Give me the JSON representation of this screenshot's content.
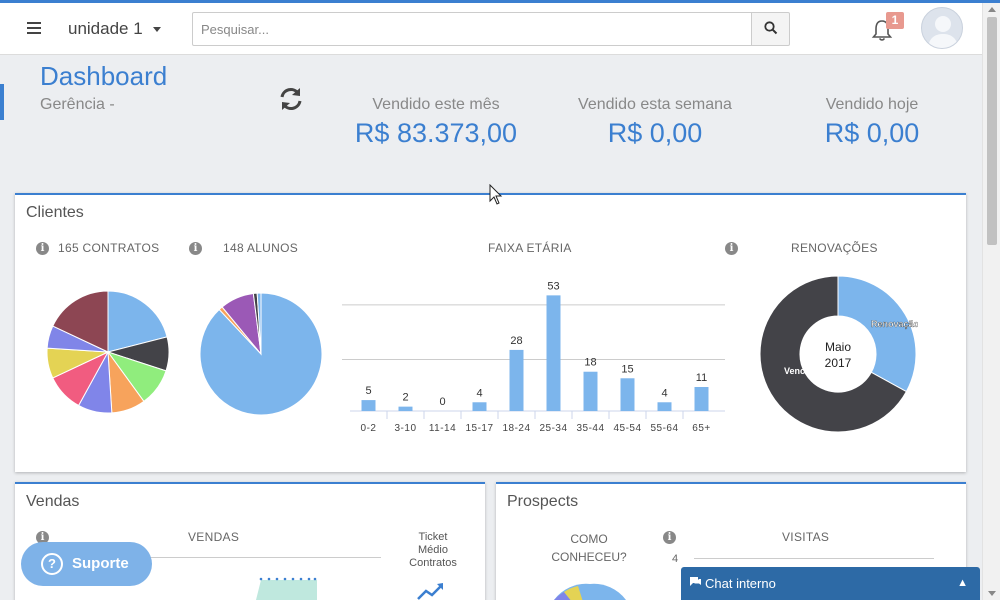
{
  "header": {
    "unit_label": "unidade 1",
    "search_placeholder": "Pesquisar...",
    "notification_count": "1"
  },
  "page": {
    "title": "Dashboard",
    "subtitle": "Gerência -"
  },
  "stats": [
    {
      "label": "Vendido este mês",
      "value": "R$ 83.373,00"
    },
    {
      "label": "Vendido esta semana",
      "value": "R$ 0,00"
    },
    {
      "label": "Vendido hoje",
      "value": "R$ 0,00"
    }
  ],
  "clientes": {
    "title": "Clientes",
    "contratos_label": "165 CONTRATOS",
    "alunos_label": "148 ALUNOS",
    "faixa_label": "FAIXA ETÁRIA",
    "renovacoes_label": "RENOVAÇÕES"
  },
  "vendas": {
    "title": "Vendas",
    "vendas_label": "VENDAS",
    "ticket_line1": "Ticket",
    "ticket_line2": "Médio",
    "ticket_line3": "Contratos"
  },
  "prospects": {
    "title": "Prospects",
    "como_line1": "COMO",
    "como_line2": "CONHECEU?",
    "visitas_label": "VISITAS",
    "visitas_axis": "4"
  },
  "support": {
    "label": "Suporte"
  },
  "chat": {
    "label": "Chat interno"
  },
  "chart_data": [
    {
      "type": "pie",
      "name_ref": "contratos",
      "series": [
        {
          "value": 21,
          "color": "#7cb5ec"
        },
        {
          "value": 9,
          "color": "#434348"
        },
        {
          "value": 10,
          "color": "#90ed7d"
        },
        {
          "value": 9,
          "color": "#f7a35c"
        },
        {
          "value": 9,
          "color": "#8085e9"
        },
        {
          "value": 10,
          "color": "#f15c80"
        },
        {
          "value": 8,
          "color": "#e4d354"
        },
        {
          "value": 6,
          "color": "#8085e8"
        },
        {
          "value": 18,
          "color": "#8d4653"
        }
      ]
    },
    {
      "type": "pie",
      "name_ref": "alunos",
      "series": [
        {
          "value": 88,
          "color": "#7cb5ec"
        },
        {
          "value": 1,
          "color": "#f7a35c"
        },
        {
          "value": 9,
          "color": "#9b59b6"
        },
        {
          "value": 1,
          "color": "#434348"
        },
        {
          "value": 1,
          "color": "#7cb5ec"
        }
      ]
    },
    {
      "type": "bar",
      "categories": [
        "0-2",
        "3-10",
        "11-14",
        "15-17",
        "18-24",
        "25-34",
        "35-44",
        "45-54",
        "55-64",
        "65+"
      ],
      "values": [
        5,
        2,
        0,
        4,
        28,
        53,
        18,
        15,
        4,
        11
      ],
      "ylim": [
        0,
        55
      ],
      "grid": true,
      "color": "#7cb5ec"
    },
    {
      "type": "pie",
      "donut": true,
      "center_line1": "Maio",
      "center_line2": "2017",
      "series": [
        {
          "name": "Renovação",
          "value": 33,
          "color": "#7cb5ec"
        },
        {
          "name": "Vencimento",
          "value": 67,
          "color": "#434348"
        }
      ]
    }
  ]
}
